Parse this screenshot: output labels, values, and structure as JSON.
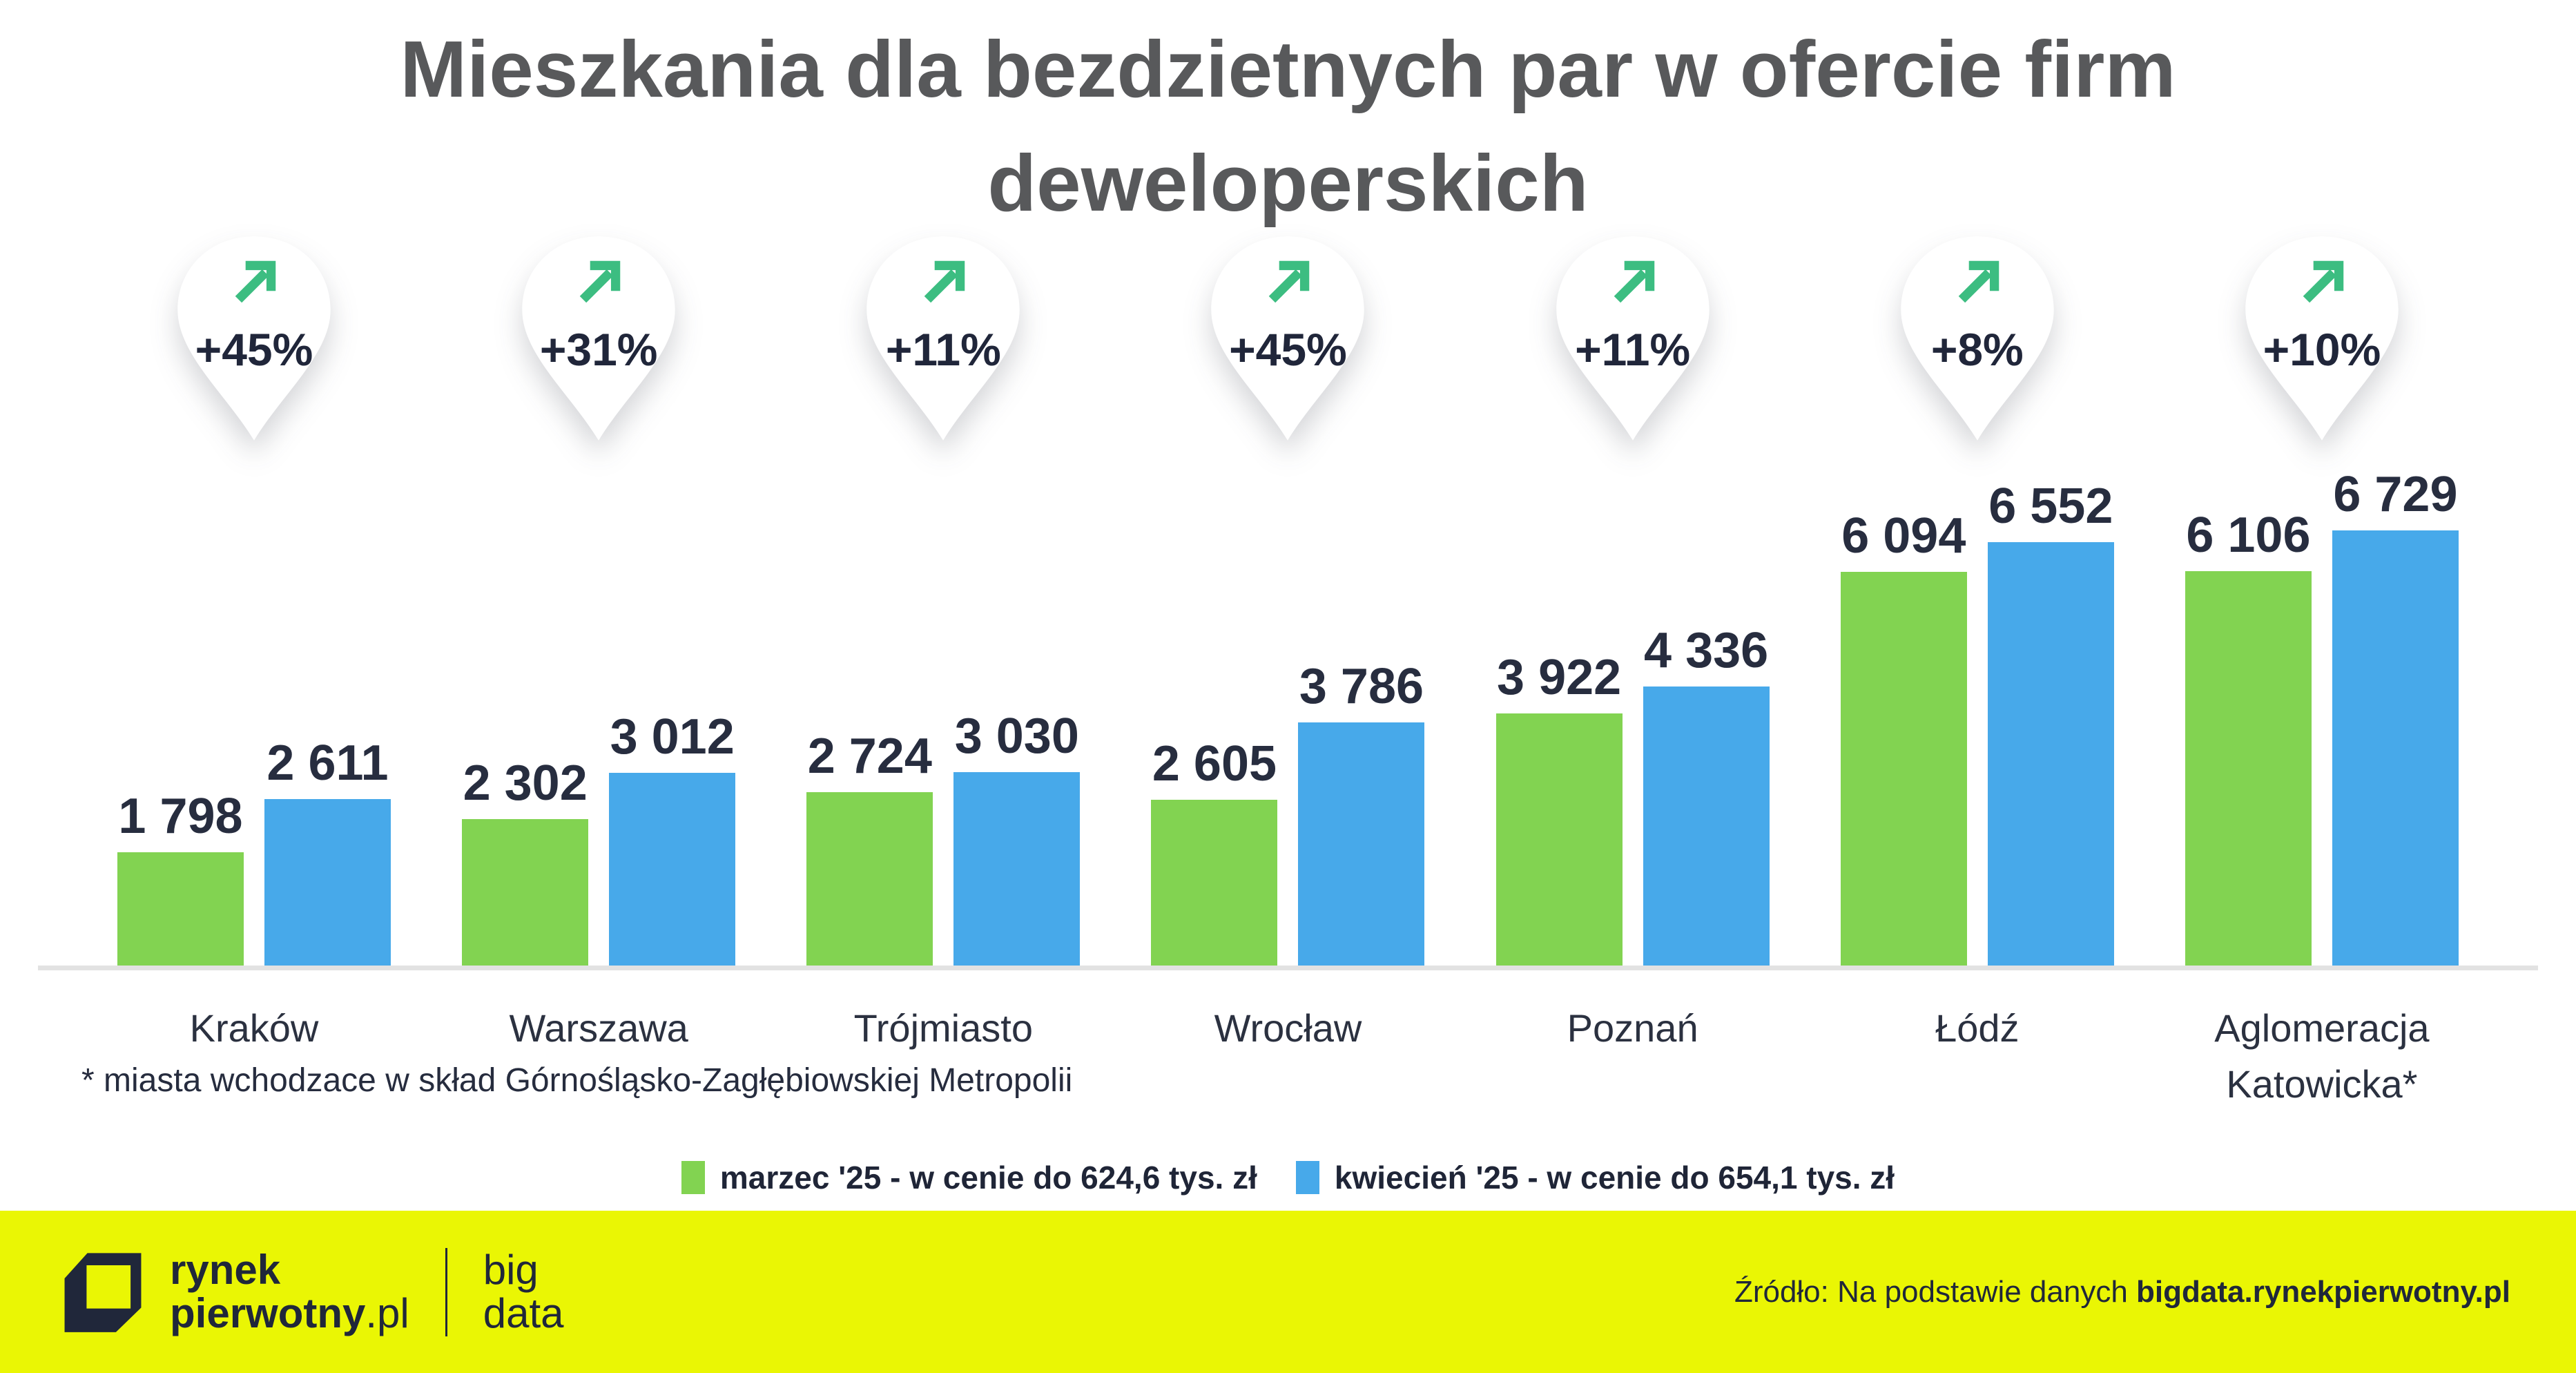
{
  "title": {
    "line1": "Mieszkania dla bezdzietnych par w ofercie firm",
    "line2": "deweloperskich"
  },
  "chart_data": {
    "type": "bar",
    "title": "Mieszkania dla bezdzietnych par w ofercie firm deweloperskich",
    "categories": [
      "Kraków",
      "Warszawa",
      "Trójmiasto",
      "Wrocław",
      "Poznań",
      "Łódź",
      "Aglomeracja Katowicka*"
    ],
    "series": [
      {
        "name": "marzec '25 - w cenie do 624,6 tys. zł",
        "color": "#82d351",
        "values": [
          1798,
          2302,
          2724,
          2605,
          3922,
          6094,
          6106
        ]
      },
      {
        "name": "kwiecień '25 - w cenie do 654,1 tys. zł",
        "color": "#47a9ea",
        "values": [
          2611,
          3012,
          3030,
          3786,
          4336,
          6552,
          6729
        ]
      }
    ],
    "growth_badges": [
      "+45%",
      "+31%",
      "+11%",
      "+45%",
      "+11%",
      "+8%",
      "+10%"
    ],
    "xlabel": "",
    "ylabel": "",
    "ylim": [
      0,
      6900
    ],
    "grid": false,
    "legend_position": "bottom",
    "value_labels": "above-bars, space as thousands separator"
  },
  "icons": {
    "growth_pin": "map-pin-shape",
    "growth_arrow": "trend-up-right-arrow"
  },
  "footnote": "* miasta wchodzace w skład Górnośląsko-Zagłębiowskiej Metropolii",
  "footer": {
    "logo": {
      "line1": "rynek",
      "line2_bold": "pierwotny",
      "line2_light": ".pl",
      "sub_line1": "big",
      "sub_line2": "data"
    },
    "source_prefix": "Źródło: Na podstawie danych ",
    "source_bold": "bigdata.rynekpierwotny.pl"
  },
  "colors": {
    "series_march": "#82d351",
    "series_april": "#47a9ea",
    "title_text": "#58595b",
    "value_text": "#272d3f",
    "pin_arrow_green": "#3cbd81",
    "footer_background": "#eaf604",
    "brand_navy": "#20273a",
    "baseline_gray": "#e2e2e2"
  }
}
